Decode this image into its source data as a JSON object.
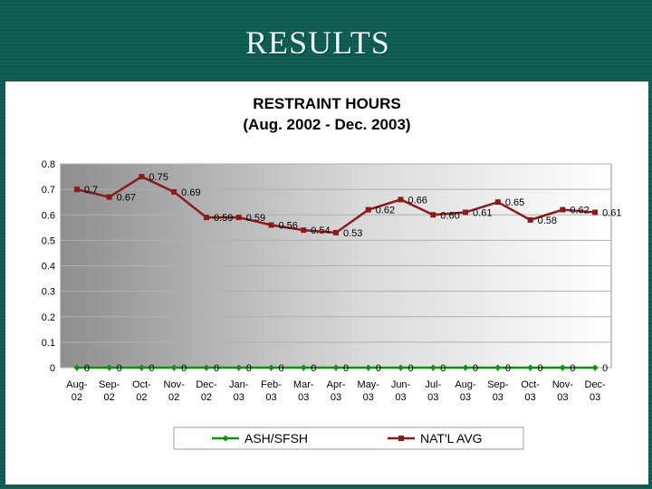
{
  "slide": {
    "title": "RESULTS"
  },
  "chart_data": {
    "type": "line",
    "title": "RESTRAINT HOURS",
    "subtitle": "(Aug. 2002 - Dec. 2003)",
    "categories": [
      [
        "Aug-",
        "02"
      ],
      [
        "Sep-",
        "02"
      ],
      [
        "Oct-",
        "02"
      ],
      [
        "Nov-",
        "02"
      ],
      [
        "Dec-",
        "02"
      ],
      [
        "Jan-",
        "03"
      ],
      [
        "Feb-",
        "03"
      ],
      [
        "Mar-",
        "03"
      ],
      [
        "Apr-",
        "03"
      ],
      [
        "May-",
        "03"
      ],
      [
        "Jun-",
        "03"
      ],
      [
        "Jul-",
        "03"
      ],
      [
        "Aug-",
        "03"
      ],
      [
        "Sep-",
        "03"
      ],
      [
        "Oct-",
        "03"
      ],
      [
        "Nov-",
        "03"
      ],
      [
        "Dec-",
        "03"
      ]
    ],
    "ylim": [
      0,
      0.8
    ],
    "yticks": [
      "0",
      "0.1",
      "0.2",
      "0.3",
      "0.4",
      "0.5",
      "0.6",
      "0.7",
      "0.8"
    ],
    "grid": true,
    "legend_position": "bottom",
    "series": [
      {
        "name": "ASH/SFSH",
        "color": "#109010",
        "marker": "diamond",
        "values": [
          0,
          0,
          0,
          0,
          0,
          0,
          0,
          0,
          0,
          0,
          0,
          0,
          0,
          0,
          0,
          0,
          0
        ],
        "labels": [
          "0",
          "0",
          "0",
          "0",
          "0",
          "0",
          "0",
          "0",
          "0",
          "0",
          "0",
          "0",
          "0",
          "0",
          "0",
          "0",
          "0"
        ]
      },
      {
        "name": "NAT'L AVG",
        "color": "#8b1a1a",
        "marker": "square",
        "values": [
          0.7,
          0.67,
          0.75,
          0.69,
          0.59,
          0.59,
          0.56,
          0.54,
          0.53,
          0.62,
          0.66,
          0.6,
          0.61,
          0.65,
          0.58,
          0.62,
          0.61
        ],
        "labels": [
          "0.7",
          "0.67",
          "0.75",
          "0.69",
          "0.59",
          "0.59",
          "0.56",
          "0.54",
          "0.53",
          "0.62",
          "0.66",
          "0.60",
          "0.61",
          "0.65",
          "0.58",
          "0.62",
          "0.61"
        ]
      }
    ]
  }
}
